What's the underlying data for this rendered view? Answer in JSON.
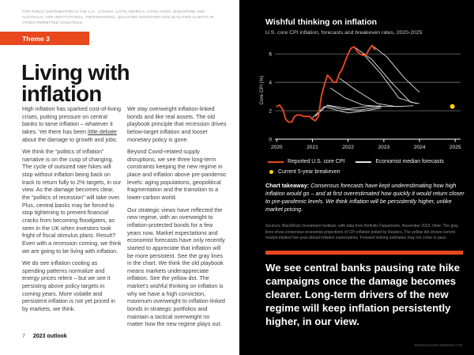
{
  "page": {
    "disclaimer": "FOR PUBLIC DISTRIBUTION IN THE U.S., CANADA, LATIN AMERICA, HONG KONG, SINGAPORE AND AUSTRALIA. FOR INSTITUTIONAL, PROFESSIONAL, QUALIFIED INVESTORS AND QUALIFIED CLIENTS IN OTHER PERMITTED COUNTRIES.",
    "theme_badge": "Theme 3",
    "title": "Living with inflation",
    "footer_page_number": "7",
    "footer_title": "2023 outlook"
  },
  "article": {
    "col1_p1_pre": "High inflation has sparked cost-of-living crises, putting pressure on central banks to tame inflation – whatever it takes. Yet there has been ",
    "col1_p1_link": "little debate",
    "col1_p1_post": " about the damage to growth and jobs.",
    "col1_p2": "We think the “politics of inflation” narrative is on the cusp of changing. The cycle of outsized rate hikes will stop without inflation being back on track to return fully to 2% targets, in our view. As the damage becomes clear, the “politics of recession” will take over. Plus, central banks may be forced to stop tightening to prevent financial cracks from becoming floodgates, as seen in the UK when investors took fright of fiscal stimulus plans. Result? Even with a recession coming, we think we are going to be living with inflation.",
    "col1_p3": "We do see inflation cooling as spending patterns normalize and energy prices relent – but we see it persisting above policy targets in coming years. More volatile and persistent inflation is not yet priced in by markets, we think.",
    "col2_p1": "We stay overweight inflation-linked bonds and like real assets. The old playbook principle that recession drives below-target inflation and looser monetary policy is gone.",
    "col2_p2": "Beyond Covid-related supply disruptions, we see three long-term constraints keeping the new regime in place and inflation above pre-pandemic levels: aging populations, geopolitical fragmentation and the transition to a lower-carbon world.",
    "col2_p3": "Our strategic views have reflected the new regime, with an overweight to inflation-protected bonds for a few years now. Market expectations and economist forecasts have only recently started to appreciate that inflation will be more persistent. See the gray lines in the chart. We think the old playbook means markets underappreciate inflation. See the yellow dot. The market's wishful thinking on inflation is why we have a high conviction, maximum overweight to inflation-linked bonds in strategic portfolios and maintain a tactical overweight no matter how the new regime plays out."
  },
  "panel": {
    "legend": [
      {
        "label": "Reported U.S. core CPI",
        "color": "#e8481d"
      },
      {
        "label": "Economist median forecasts",
        "color": "#e6e6e6"
      },
      {
        "label": "Current 5-year breakeven",
        "color": "#ffd400"
      }
    ],
    "takeaway_label": "Chart takeaway:",
    "takeaway_text": " Consensus forecasts have kept underestimating how high inflation would go – and at first overestimated how quickly it would return closer to pre-pandemic levels. We think inflation will be persistently higher, unlike market pricing.",
    "sources": "Sources: BlackRock Investment Institute, with data from Refinitiv Datastream, November 2022. Note: The gray lines show consensus economist projections of CPI inflation polled by Reuters. The yellow dot shows current market-implied five-year-ahead inflation expectations. Forward looking estimates may not come to pass.",
    "callout": "We see central banks pausing rate hike campaigns once the damage becomes clearer. Long-term drivers of the new regime will keep inflation persistently higher, in our view.",
    "compliance_code": "BIIM1122U/M-2602845-7/16"
  },
  "colors": {
    "accent": "#e8481d",
    "panel_bg": "#000000",
    "grid": "#8d8d8d",
    "axis": "#ffffff"
  },
  "chart_data": {
    "type": "line",
    "title": "Wishful thinking on inflation",
    "subtitle": "U.S. core CPI inflation, forecasts and breakeven rates, 2020-2025",
    "ylabel": "Core CPI (%)",
    "xlim": [
      2019.95,
      2025.15
    ],
    "ylim": [
      0,
      6.9
    ],
    "yticks": [
      0,
      2,
      4,
      6
    ],
    "xticks": [
      2020,
      2021,
      2022,
      2023,
      2024,
      2025
    ],
    "grid_y": [
      2,
      4,
      6
    ],
    "legend_position": "bottom",
    "forecast_color": "#e3e3e3",
    "cpi": {
      "name": "Reported U.S. core CPI",
      "color": "#e8481d",
      "x": [
        2020.0,
        2020.08,
        2020.17,
        2020.25,
        2020.33,
        2020.42,
        2020.5,
        2020.58,
        2020.67,
        2020.75,
        2020.83,
        2020.92,
        2021.0,
        2021.08,
        2021.17,
        2021.25,
        2021.33,
        2021.42,
        2021.5,
        2021.58,
        2021.67,
        2021.75,
        2021.83,
        2021.92,
        2022.0,
        2022.08,
        2022.17,
        2022.25,
        2022.33,
        2022.42,
        2022.5,
        2022.58,
        2022.67,
        2022.75
      ],
      "y": [
        2.3,
        2.4,
        2.1,
        1.4,
        1.2,
        1.2,
        1.6,
        1.7,
        1.7,
        1.6,
        1.6,
        1.6,
        1.4,
        1.3,
        1.6,
        3.0,
        3.8,
        4.5,
        4.3,
        4.0,
        4.0,
        4.6,
        4.9,
        5.5,
        6.0,
        6.4,
        6.5,
        6.2,
        6.0,
        5.9,
        5.9,
        6.3,
        6.6,
        6.3
      ]
    },
    "forecasts": [
      [
        [
          2021.0,
          1.5
        ],
        [
          2021.33,
          2.3
        ],
        [
          2021.67,
          2.05
        ],
        [
          2022.0,
          1.85
        ],
        [
          2022.5,
          2.0
        ],
        [
          2022.92,
          2.2
        ]
      ],
      [
        [
          2021.08,
          1.6
        ],
        [
          2021.42,
          2.4
        ],
        [
          2022.0,
          2.15
        ],
        [
          2022.58,
          2.3
        ],
        [
          2022.92,
          2.35
        ]
      ],
      [
        [
          2021.42,
          2.35
        ],
        [
          2021.83,
          2.1
        ],
        [
          2022.33,
          2.05
        ],
        [
          2022.92,
          2.3
        ],
        [
          2023.42,
          2.3
        ]
      ],
      [
        [
          2021.5,
          3.6
        ],
        [
          2021.92,
          2.9
        ],
        [
          2022.42,
          2.4
        ],
        [
          2022.92,
          2.3
        ]
      ],
      [
        [
          2021.75,
          4.3
        ],
        [
          2022.25,
          3.4
        ],
        [
          2022.83,
          2.5
        ],
        [
          2023.33,
          2.3
        ],
        [
          2023.83,
          2.35
        ]
      ],
      [
        [
          2022.17,
          6.5
        ],
        [
          2022.67,
          5.6
        ],
        [
          2023.25,
          3.9
        ],
        [
          2023.75,
          2.6
        ],
        [
          2024.0,
          2.5
        ]
      ],
      [
        [
          2022.42,
          6.0
        ],
        [
          2022.92,
          4.6
        ],
        [
          2023.42,
          2.9
        ],
        [
          2023.92,
          2.5
        ]
      ],
      [
        [
          2022.67,
          6.6
        ],
        [
          2023.08,
          5.8
        ],
        [
          2023.58,
          4.3
        ],
        [
          2024.0,
          3.3
        ]
      ]
    ],
    "breakeven": {
      "name": "Current 5-year breakeven",
      "x": 2024.92,
      "y": 2.3,
      "color": "#ffd400"
    }
  }
}
